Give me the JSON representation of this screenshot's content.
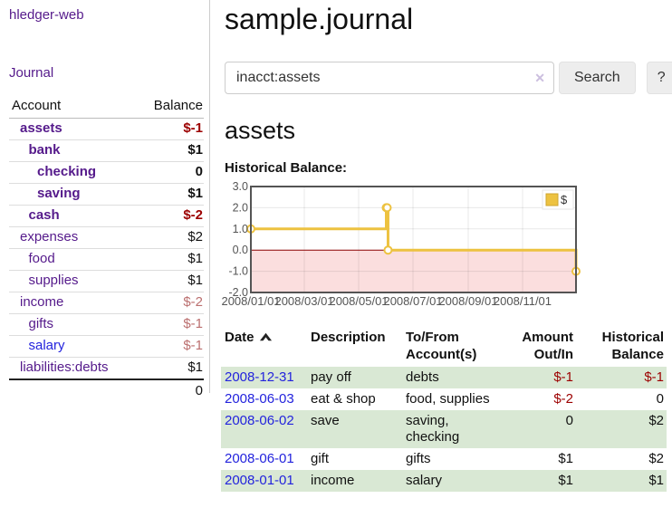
{
  "app": {
    "brand": "hledger-web",
    "nav_journal": "Journal"
  },
  "sidebar": {
    "header": {
      "account": "Account",
      "balance": "Balance"
    },
    "accounts": [
      {
        "name": "assets",
        "depth": 1,
        "balance": "$-1",
        "bold": true,
        "name_color": "purple",
        "bal_color": "neg-strong"
      },
      {
        "name": "bank",
        "depth": 2,
        "balance": "$1",
        "bold": true,
        "name_color": "purple",
        "bal_color": ""
      },
      {
        "name": "checking",
        "depth": 3,
        "balance": "0",
        "bold": true,
        "name_color": "purple",
        "bal_color": ""
      },
      {
        "name": "saving",
        "depth": 3,
        "balance": "$1",
        "bold": true,
        "name_color": "purple",
        "bal_color": ""
      },
      {
        "name": "cash",
        "depth": 2,
        "balance": "$-2",
        "bold": true,
        "name_color": "purple",
        "bal_color": "neg-strong"
      },
      {
        "name": "expenses",
        "depth": 1,
        "balance": "$2",
        "bold": false,
        "name_color": "purple",
        "bal_color": ""
      },
      {
        "name": "food",
        "depth": 2,
        "balance": "$1",
        "bold": false,
        "name_color": "purple",
        "bal_color": ""
      },
      {
        "name": "supplies",
        "depth": 2,
        "balance": "$1",
        "bold": false,
        "name_color": "purple",
        "bal_color": ""
      },
      {
        "name": "income",
        "depth": 1,
        "balance": "$-2",
        "bold": false,
        "name_color": "purple",
        "bal_color": "neg-soft"
      },
      {
        "name": "gifts",
        "depth": 2,
        "balance": "$-1",
        "bold": false,
        "name_color": "purple",
        "bal_color": "neg-soft"
      },
      {
        "name": "salary",
        "depth": 2,
        "balance": "$-1",
        "bold": false,
        "name_color": "blue",
        "bal_color": "neg-soft"
      },
      {
        "name": "liabilities:debts",
        "depth": 1,
        "balance": "$1",
        "bold": false,
        "name_color": "purple",
        "bal_color": ""
      }
    ],
    "total": "0"
  },
  "header": {
    "title": "sample.journal"
  },
  "search": {
    "value": "inacct:assets",
    "clear_icon": "✕",
    "button": "Search",
    "help_button": "?"
  },
  "main": {
    "account_title": "assets",
    "chart_label": "Historical Balance:"
  },
  "chart_data": {
    "type": "line",
    "step": true,
    "title": "Historical Balance",
    "legend": "$",
    "legend_position": "top-right",
    "grid": true,
    "line_color": "#edc240",
    "negative_fill": "#fbdede",
    "zero_line_color": "#8b0000",
    "ylim": [
      -2,
      3
    ],
    "yticks": [
      {
        "label": "3.0",
        "value": 3
      },
      {
        "label": "2.0",
        "value": 2
      },
      {
        "label": "1.0",
        "value": 1
      },
      {
        "label": "0.0",
        "value": 0
      },
      {
        "label": "-1.0",
        "value": -1
      },
      {
        "label": "-2.0",
        "value": -2
      }
    ],
    "xrange_days": [
      0,
      365
    ],
    "xticks": [
      {
        "label": "2008/01/01",
        "day": 0
      },
      {
        "label": "2008/03/01",
        "day": 60
      },
      {
        "label": "2008/05/01",
        "day": 121
      },
      {
        "label": "2008/07/01",
        "day": 182
      },
      {
        "label": "2008/09/01",
        "day": 244
      },
      {
        "label": "2008/11/01",
        "day": 305
      }
    ],
    "series": [
      {
        "name": "$",
        "points": [
          {
            "date": "2008-01-01",
            "day": 0,
            "value": 1
          },
          {
            "date": "2008-06-01",
            "day": 152,
            "value": 2
          },
          {
            "date": "2008-06-02",
            "day": 153,
            "value": 2
          },
          {
            "date": "2008-06-03",
            "day": 154,
            "value": 0
          },
          {
            "date": "2008-12-31",
            "day": 365,
            "value": -1
          }
        ]
      }
    ]
  },
  "register": {
    "headers": {
      "date": "Date",
      "description": "Description",
      "accounts": "To/From Account(s)",
      "amount": "Amount Out/In",
      "balance": "Historical Balance"
    },
    "rows": [
      {
        "date": "2008-12-31",
        "description": "pay off",
        "accounts": "debts",
        "amount": "$-1",
        "balance": "$-1"
      },
      {
        "date": "2008-06-03",
        "description": "eat & shop",
        "accounts": "food, supplies",
        "amount": "$-2",
        "balance": "0"
      },
      {
        "date": "2008-06-02",
        "description": "save",
        "accounts": "saving, checking",
        "amount": "0",
        "balance": "$2"
      },
      {
        "date": "2008-06-01",
        "description": "gift",
        "accounts": "gifts",
        "amount": "$1",
        "balance": "$2"
      },
      {
        "date": "2008-01-01",
        "description": "income",
        "accounts": "salary",
        "amount": "$1",
        "balance": "$1"
      }
    ]
  }
}
